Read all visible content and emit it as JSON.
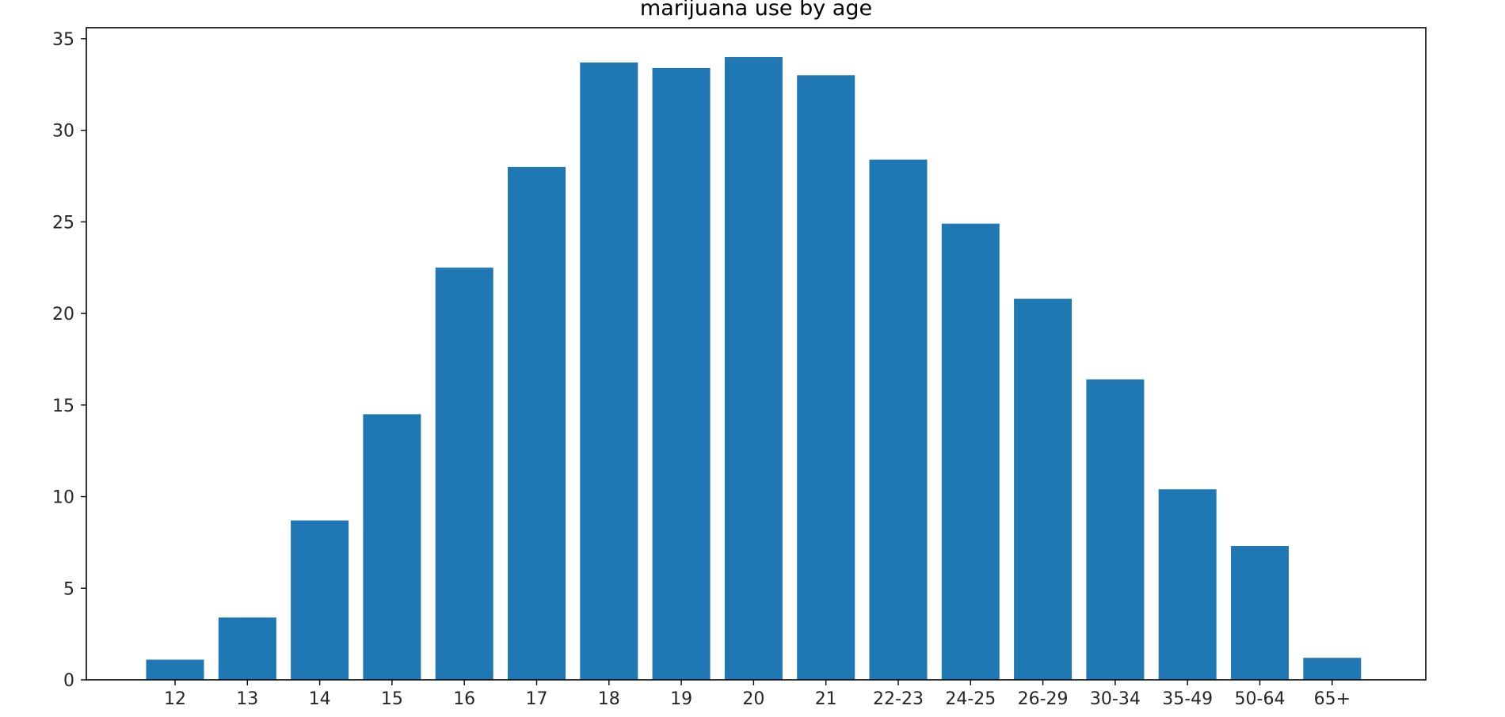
{
  "chart_data": {
    "type": "bar",
    "title": "marijuana use by age",
    "xlabel": "",
    "ylabel": "",
    "categories": [
      "12",
      "13",
      "14",
      "15",
      "16",
      "17",
      "18",
      "19",
      "20",
      "21",
      "22-23",
      "24-25",
      "26-29",
      "30-34",
      "35-49",
      "50-64",
      "65+"
    ],
    "values": [
      1.1,
      3.4,
      8.7,
      14.5,
      22.5,
      28.0,
      33.7,
      33.4,
      34.0,
      33.0,
      28.4,
      24.9,
      20.8,
      16.4,
      10.4,
      7.3,
      1.2
    ],
    "ylim": [
      0,
      35.6
    ],
    "yticks": [
      0,
      5,
      10,
      15,
      20,
      25,
      30,
      35
    ],
    "ytick_labels": [
      "0",
      "5",
      "10",
      "15",
      "20",
      "25",
      "30",
      "35"
    ],
    "bar_color": "#1f77b4",
    "grid": false,
    "legend": "none"
  }
}
